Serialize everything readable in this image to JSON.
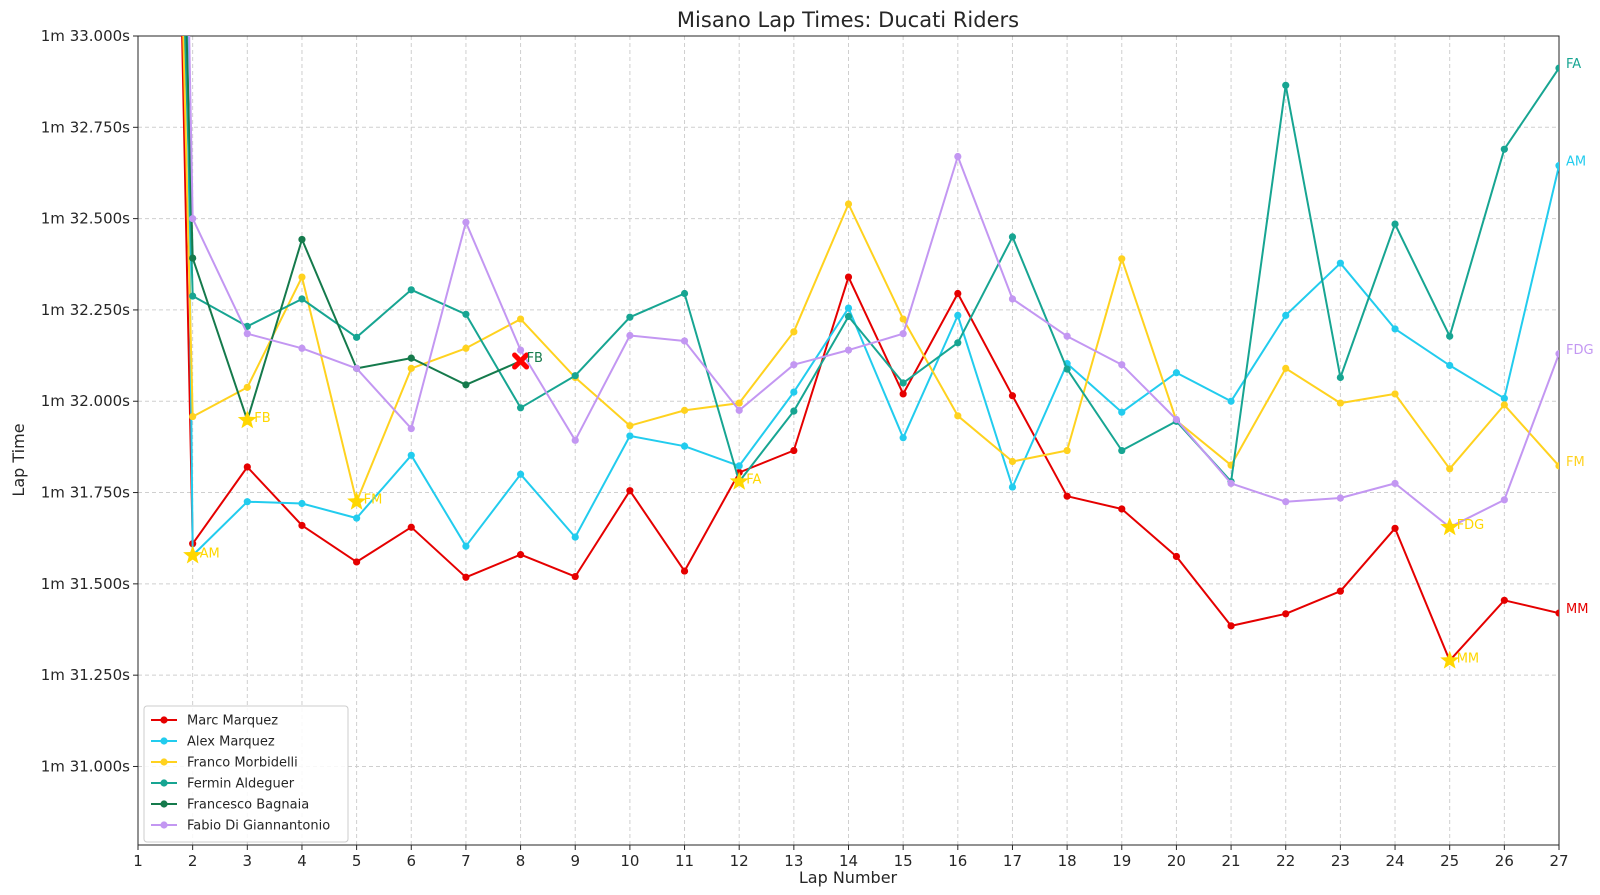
{
  "chart_data": {
    "type": "line",
    "title": "Misano Lap Times: Ducati Riders",
    "xlabel": "Lap Number",
    "ylabel": "Lap Time",
    "xlim": [
      1,
      27
    ],
    "ylim": [
      90.785,
      93.0
    ],
    "x_ticks": [
      1,
      2,
      3,
      4,
      5,
      6,
      7,
      8,
      9,
      10,
      11,
      12,
      13,
      14,
      15,
      16,
      17,
      18,
      19,
      20,
      21,
      22,
      23,
      24,
      25,
      26,
      27
    ],
    "y_ticks": [
      {
        "value": 91.0,
        "label": "1m 31.000s"
      },
      {
        "value": 91.25,
        "label": "1m 31.250s"
      },
      {
        "value": 91.5,
        "label": "1m 31.500s"
      },
      {
        "value": 91.75,
        "label": "1m 31.750s"
      },
      {
        "value": 92.0,
        "label": "1m 32.000s"
      },
      {
        "value": 92.25,
        "label": "1m 32.250s"
      },
      {
        "value": 92.5,
        "label": "1m 32.500s"
      },
      {
        "value": 92.75,
        "label": "1m 32.750s"
      },
      {
        "value": 93.0,
        "label": "1m 33.000s"
      }
    ],
    "grid": true,
    "legend_position": "bottom-left",
    "best_marker_color": "#ffd700",
    "series": [
      {
        "name": "Marc Marquez",
        "abbr": "MM",
        "color": "#e50000",
        "lead_in": 1.8,
        "x": [
          2,
          3,
          4,
          5,
          6,
          7,
          8,
          9,
          10,
          11,
          12,
          13,
          14,
          15,
          16,
          17,
          18,
          19,
          20,
          21,
          22,
          23,
          24,
          25,
          26,
          27
        ],
        "values": [
          91.61,
          91.82,
          91.66,
          91.56,
          91.655,
          91.518,
          91.58,
          91.52,
          91.755,
          91.535,
          91.805,
          91.865,
          92.34,
          92.02,
          92.295,
          92.015,
          91.74,
          91.705,
          91.575,
          91.385,
          91.418,
          91.48,
          91.652,
          91.29,
          91.455,
          91.42
        ],
        "best": {
          "x": 25,
          "value": 91.29
        }
      },
      {
        "name": "Alex Marquez",
        "abbr": "AM",
        "color": "#22ccee",
        "lead_in": 1.9,
        "x": [
          2,
          3,
          4,
          5,
          6,
          7,
          8,
          9,
          10,
          11,
          12,
          13,
          14,
          15,
          16,
          17,
          18,
          19,
          20,
          21,
          22,
          23,
          24,
          25,
          26,
          27
        ],
        "values": [
          91.578,
          91.725,
          91.72,
          91.68,
          91.852,
          91.603,
          91.8,
          91.628,
          91.905,
          91.877,
          91.823,
          92.025,
          92.255,
          91.9,
          92.235,
          91.765,
          92.103,
          91.97,
          92.078,
          92.0,
          92.235,
          92.378,
          92.198,
          92.098,
          92.008,
          92.645
        ],
        "best": {
          "x": 2,
          "value": 91.578
        }
      },
      {
        "name": "Franco Morbidelli",
        "abbr": "FM",
        "color": "#ffd21f",
        "lead_in": 1.82,
        "x": [
          2,
          3,
          4,
          5,
          6,
          7,
          8,
          9,
          10,
          11,
          12,
          13,
          14,
          15,
          16,
          17,
          18,
          19,
          20,
          21,
          22,
          23,
          24,
          25,
          26,
          27
        ],
        "values": [
          91.958,
          92.038,
          92.34,
          91.725,
          92.09,
          92.145,
          92.225,
          92.065,
          91.933,
          91.975,
          91.995,
          92.19,
          92.54,
          92.225,
          91.96,
          91.835,
          91.865,
          92.39,
          91.947,
          91.825,
          92.09,
          91.995,
          92.02,
          91.815,
          91.99,
          91.823
        ],
        "best": {
          "x": 5,
          "value": 91.725
        }
      },
      {
        "name": "Fermin Aldeguer",
        "abbr": "FA",
        "color": "#17a592",
        "lead_in": 1.85,
        "x": [
          2,
          3,
          4,
          5,
          6,
          7,
          8,
          9,
          10,
          11,
          12,
          13,
          14,
          15,
          16,
          17,
          18,
          19,
          20,
          21,
          22,
          23,
          24,
          25,
          26,
          27
        ],
        "values": [
          92.288,
          92.205,
          92.28,
          92.175,
          92.305,
          92.238,
          91.982,
          92.07,
          92.23,
          92.295,
          91.78,
          91.973,
          92.232,
          92.05,
          92.16,
          92.45,
          92.088,
          91.865,
          91.945,
          91.78,
          92.865,
          92.065,
          92.485,
          92.178,
          92.69,
          92.912
        ],
        "best": {
          "x": 12,
          "value": 91.78
        }
      },
      {
        "name": "Francesco Bagnaia",
        "abbr": "FB",
        "color": "#157a4c",
        "lead_in": 1.88,
        "x": [
          2,
          3,
          4,
          5,
          6,
          7,
          8
        ],
        "values": [
          92.392,
          91.948,
          92.443,
          92.09,
          92.118,
          92.045,
          92.11
        ],
        "best": {
          "x": 3,
          "value": 91.948
        },
        "dnf": {
          "x": 8,
          "value": 92.11,
          "color": "#ff0000"
        }
      },
      {
        "name": "Fabio Di Giannantonio",
        "abbr": "FDG",
        "color": "#c397f2",
        "lead_in": 1.93,
        "x": [
          2,
          3,
          4,
          5,
          6,
          7,
          8,
          9,
          10,
          11,
          12,
          13,
          14,
          15,
          16,
          17,
          18,
          19,
          20,
          21,
          22,
          23,
          24,
          25,
          26,
          27
        ],
        "values": [
          92.5,
          92.185,
          92.145,
          92.09,
          91.925,
          92.49,
          92.14,
          91.893,
          92.18,
          92.165,
          91.975,
          92.1,
          92.14,
          92.185,
          92.67,
          92.28,
          92.178,
          92.1,
          91.95,
          91.775,
          91.725,
          91.735,
          91.775,
          91.655,
          91.73,
          92.13
        ],
        "best": {
          "x": 25,
          "value": 91.655
        }
      }
    ]
  }
}
